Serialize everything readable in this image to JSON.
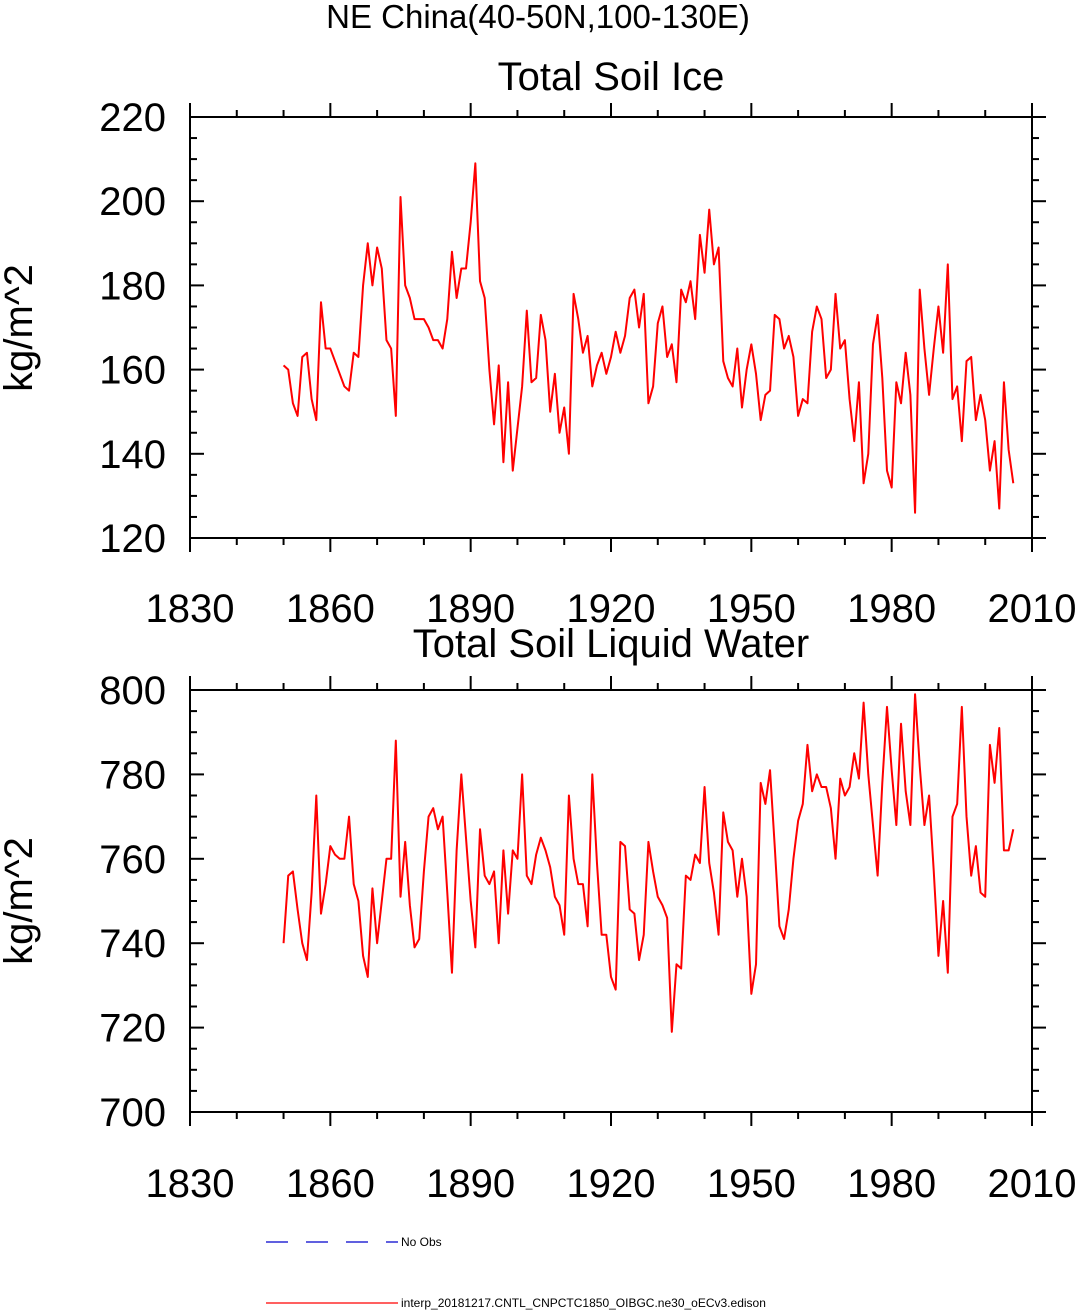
{
  "figure_title": "NE China(40-50N,100-130E)",
  "chart_data": [
    {
      "type": "line",
      "title": "Total Soil Ice",
      "xlabel": "",
      "ylabel": "kg/m^2",
      "xlim": [
        1830,
        2010
      ],
      "ylim": [
        120,
        220
      ],
      "x_ticks": [
        "1830",
        "1860",
        "1890",
        "1920",
        "1950",
        "1980",
        "2010"
      ],
      "y_ticks": [
        "120",
        "140",
        "160",
        "180",
        "200",
        "220"
      ],
      "x_start": 1850,
      "series": [
        {
          "name": "interp_20181217.CNTL_CNPCTC1850_OIBGC.ne30_oECv3.edison",
          "color": "#ff0000",
          "values": [
            161,
            160,
            152,
            149,
            163,
            164,
            153,
            148,
            176,
            165,
            165,
            162,
            159,
            156,
            155,
            164,
            163,
            180,
            190,
            180,
            189,
            184,
            167,
            165,
            149,
            201,
            180,
            177,
            172,
            172,
            172,
            170,
            167,
            167,
            165,
            172,
            188,
            177,
            184,
            184,
            195,
            209,
            181,
            177,
            160,
            147,
            161,
            138,
            157,
            136,
            146,
            156,
            174,
            157,
            158,
            173,
            167,
            150,
            159,
            145,
            151,
            140,
            178,
            172,
            164,
            168,
            156,
            161,
            164,
            159,
            163,
            169,
            164,
            168,
            177,
            179,
            170,
            178,
            152,
            156,
            171,
            175,
            163,
            166,
            157,
            179,
            176,
            181,
            172,
            192,
            183,
            198,
            185,
            189,
            162,
            158,
            156,
            165,
            151,
            160,
            166,
            159,
            148,
            154,
            155,
            173,
            172,
            165,
            168,
            163,
            149,
            153,
            152,
            169,
            175,
            172,
            158,
            160,
            178,
            165,
            167,
            153,
            143,
            157,
            133,
            140,
            166,
            173,
            158,
            136,
            132,
            157,
            152,
            164,
            154,
            126,
            179,
            165,
            154,
            165,
            175,
            164,
            185,
            153,
            156,
            143,
            162,
            163,
            148,
            154,
            148,
            136,
            143,
            127,
            157,
            141,
            133
          ]
        }
      ]
    },
    {
      "type": "line",
      "title": "Total Soil Liquid Water",
      "xlabel": "",
      "ylabel": "kg/m^2",
      "xlim": [
        1830,
        2010
      ],
      "ylim": [
        700,
        800
      ],
      "x_ticks": [
        "1830",
        "1860",
        "1890",
        "1920",
        "1950",
        "1980",
        "2010"
      ],
      "y_ticks": [
        "700",
        "720",
        "740",
        "760",
        "780",
        "800"
      ],
      "x_start": 1850,
      "series": [
        {
          "name": "interp_20181217.CNTL_CNPCTC1850_OIBGC.ne30_oECv3.edison",
          "color": "#ff0000",
          "values": [
            740,
            756,
            757,
            748,
            740,
            736,
            752,
            775,
            747,
            754,
            763,
            761,
            760,
            760,
            770,
            754,
            750,
            737,
            732,
            753,
            740,
            750,
            760,
            760,
            788,
            751,
            764,
            749,
            739,
            741,
            757,
            770,
            772,
            767,
            770,
            752,
            733,
            762,
            780,
            765,
            750,
            739,
            767,
            756,
            754,
            757,
            740,
            762,
            747,
            762,
            760,
            780,
            756,
            754,
            761,
            765,
            762,
            758,
            751,
            749,
            742,
            775,
            760,
            754,
            754,
            744,
            780,
            759,
            742,
            742,
            732,
            729,
            764,
            763,
            748,
            747,
            736,
            742,
            764,
            757,
            751,
            749,
            746,
            719,
            735,
            734,
            756,
            755,
            761,
            759,
            777,
            759,
            752,
            742,
            771,
            764,
            762,
            751,
            760,
            751,
            728,
            735,
            778,
            773,
            781,
            763,
            744,
            741,
            748,
            760,
            769,
            773,
            787,
            776,
            780,
            777,
            777,
            772,
            760,
            779,
            775,
            777,
            785,
            779,
            797,
            780,
            768,
            756,
            778,
            796,
            781,
            768,
            792,
            776,
            768,
            799,
            782,
            768,
            775,
            757,
            737,
            750,
            733,
            770,
            773,
            796,
            770,
            756,
            763,
            752,
            751,
            787,
            778,
            791,
            762,
            762,
            767
          ]
        }
      ]
    }
  ],
  "legend": [
    {
      "label": "No Obs",
      "color": "#0000cc",
      "style": "dashed"
    },
    {
      "label": "interp_20181217.CNTL_CNPCTC1850_OIBGC.ne30_oECv3.edison",
      "color": "#ff0000",
      "style": "solid"
    }
  ]
}
